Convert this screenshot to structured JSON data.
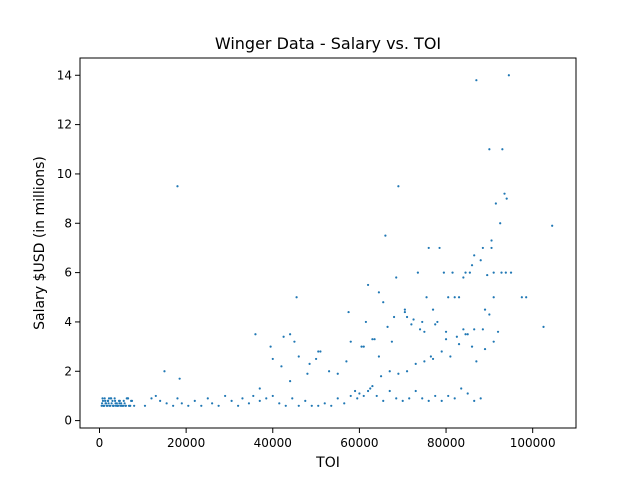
{
  "chart_data": {
    "type": "scatter",
    "title": "Winger Data - Salary vs. TOI",
    "xlabel": "TOI",
    "ylabel": "Salary $USD (in millions)",
    "xlim": [
      -4500,
      110000
    ],
    "ylim": [
      -0.3,
      14.7
    ],
    "xticks": [
      0,
      20000,
      40000,
      60000,
      80000,
      100000
    ],
    "xtick_labels": [
      "0",
      "20000",
      "40000",
      "60000",
      "80000",
      "100000"
    ],
    "yticks": [
      0,
      2,
      4,
      6,
      8,
      10,
      12,
      14
    ],
    "ytick_labels": [
      "0",
      "2",
      "4",
      "6",
      "8",
      "10",
      "12",
      "14"
    ],
    "marker_color": "#1f77b4",
    "grid": false,
    "x": [
      500,
      800,
      1000,
      1200,
      1500,
      1800,
      2000,
      2200,
      2500,
      2800,
      3000,
      3200,
      3500,
      3800,
      4000,
      4200,
      4500,
      4800,
      5000,
      5500,
      6000,
      6500,
      7000,
      7500,
      8000,
      600,
      900,
      1300,
      1700,
      2100,
      2600,
      3100,
      3600,
      4100,
      4600,
      5100,
      5600,
      6100,
      6600,
      7100,
      700,
      1100,
      1400,
      1900,
      2300,
      2700,
      3300,
      3700,
      4300,
      4700,
      5300,
      5800,
      6300,
      6800,
      7300,
      10500,
      12000,
      13000,
      14000,
      15500,
      17000,
      18000,
      19000,
      20500,
      22000,
      23500,
      25000,
      26000,
      27500,
      29000,
      30500,
      32000,
      33000,
      34500,
      35500,
      37000,
      38500,
      40000,
      41500,
      43000,
      44500,
      46000,
      47500,
      49000,
      50500,
      52000,
      53500,
      55000,
      56500,
      58000,
      59500,
      61000,
      62500,
      64000,
      65500,
      67000,
      68500,
      70000,
      71500,
      73000,
      74500,
      76000,
      77500,
      79000,
      80500,
      82000,
      83500,
      85000,
      86500,
      88000,
      15000,
      18500,
      37000,
      40000,
      42000,
      44000,
      46000,
      48000,
      50000,
      51000,
      53000,
      55000,
      57000,
      59000,
      60000,
      62000,
      63000,
      65000,
      67000,
      69000,
      71000,
      73000,
      75000,
      77000,
      79000,
      81000,
      83000,
      85000,
      87000,
      89000,
      58000,
      60500,
      61500,
      63500,
      64500,
      66500,
      68000,
      70500,
      72500,
      74000,
      76500,
      78000,
      80000,
      82500,
      84000,
      86000,
      88500,
      90000,
      92000,
      18000,
      69000,
      66000,
      94500,
      87000,
      90000,
      93000,
      91500,
      88500,
      92500,
      93500,
      94000,
      76000,
      78500,
      81500,
      84500,
      86500,
      90500,
      91000,
      93800,
      95000,
      97500,
      98500,
      104500,
      102500,
      62000,
      64500,
      68500,
      70500,
      72000,
      74500,
      77000,
      80500,
      83000,
      85500,
      88000,
      90500,
      73500,
      75500,
      79500,
      82000,
      84000,
      86000,
      89500,
      91000,
      92800,
      36000,
      45500,
      42500,
      44000,
      39500,
      45000,
      48500,
      50500,
      61000,
      57500,
      63000,
      65500,
      67500,
      71000,
      75000,
      77500,
      80000,
      84500,
      86500,
      89000,
      91000
    ],
    "y": [
      0.6,
      0.8,
      0.6,
      0.9,
      0.7,
      0.6,
      0.8,
      0.9,
      0.6,
      0.7,
      0.8,
      0.6,
      0.9,
      0.6,
      0.7,
      0.6,
      0.8,
      0.6,
      0.7,
      0.6,
      0.6,
      0.9,
      0.6,
      0.8,
      0.6,
      0.7,
      0.6,
      0.8,
      0.6,
      0.7,
      0.9,
      0.6,
      0.8,
      0.6,
      0.7,
      0.6,
      0.8,
      0.6,
      0.9,
      0.6,
      0.9,
      0.6,
      0.7,
      0.8,
      0.6,
      0.9,
      0.6,
      0.7,
      0.6,
      0.8,
      0.6,
      0.7,
      0.9,
      0.6,
      0.8,
      0.6,
      0.9,
      1.0,
      0.8,
      0.7,
      0.6,
      0.9,
      0.7,
      0.6,
      0.8,
      0.6,
      0.9,
      0.7,
      0.6,
      1.0,
      0.8,
      0.6,
      0.9,
      0.7,
      1.0,
      0.8,
      0.9,
      1.0,
      0.7,
      0.6,
      0.9,
      0.6,
      0.8,
      0.6,
      0.6,
      0.7,
      0.6,
      0.9,
      0.7,
      1.0,
      0.9,
      1.0,
      1.3,
      1.0,
      0.8,
      1.2,
      0.9,
      0.8,
      0.9,
      1.2,
      0.9,
      0.8,
      1.0,
      0.8,
      1.0,
      0.9,
      1.3,
      1.1,
      0.8,
      0.9,
      2.0,
      1.7,
      1.3,
      2.5,
      2.2,
      1.6,
      2.6,
      1.9,
      2.5,
      2.8,
      2.0,
      1.9,
      2.4,
      1.2,
      1.1,
      1.2,
      1.4,
      1.8,
      2.0,
      1.9,
      2.0,
      2.3,
      2.4,
      2.5,
      2.8,
      2.6,
      3.1,
      3.5,
      2.4,
      2.9,
      3.2,
      3.0,
      4.0,
      3.3,
      2.6,
      3.8,
      4.2,
      4.4,
      4.1,
      3.7,
      2.6,
      4.0,
      3.6,
      3.4,
      3.7,
      3.0,
      3.7,
      4.3,
      3.6,
      9.5,
      9.5,
      7.5,
      14.0,
      13.8,
      11.0,
      11.0,
      8.8,
      7.0,
      8.0,
      9.2,
      9.0,
      7.0,
      7.0,
      6.0,
      6.0,
      6.7,
      7.0,
      6.0,
      6.0,
      6.0,
      5.0,
      5.0,
      7.9,
      3.8,
      5.5,
      5.2,
      5.8,
      4.5,
      3.9,
      4.0,
      4.5,
      5.0,
      5.0,
      6.0,
      6.5,
      7.3,
      6.0,
      5.0,
      6.0,
      5.0,
      5.8,
      6.3,
      5.9,
      5.0,
      6.0,
      3.5,
      5.0,
      3.4,
      3.5,
      3.0,
      3.2,
      2.3,
      2.8,
      3.0,
      4.4,
      3.3,
      4.8,
      3.2,
      4.2,
      3.6,
      3.9,
      3.3,
      3.5,
      3.7,
      4.5,
      3.2
    ]
  }
}
